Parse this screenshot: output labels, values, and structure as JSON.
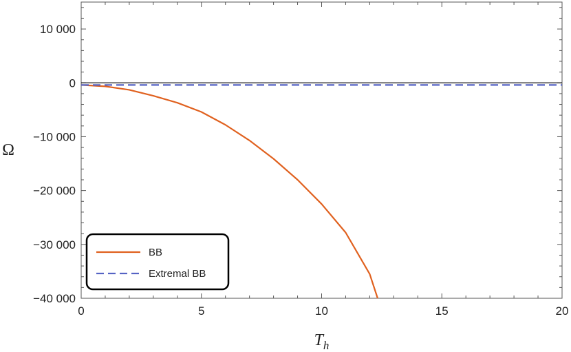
{
  "chart_data": {
    "type": "line",
    "title": "",
    "xlabel": "T",
    "xlabel_sub": "h",
    "ylabel": "Ω",
    "xlim": [
      0,
      20
    ],
    "ylim": [
      -40000,
      15000
    ],
    "x_ticks": [
      0,
      5,
      10,
      15,
      20
    ],
    "x_tick_labels": [
      "0",
      "5",
      "10",
      "15",
      "20"
    ],
    "y_ticks": [
      -40000,
      -30000,
      -20000,
      -10000,
      0,
      10000
    ],
    "y_tick_labels": [
      "−40 000",
      "−30 000",
      "−20 000",
      "−10 000",
      "0",
      "10 000"
    ],
    "grid": false,
    "legend_position": "bottom-left",
    "series": [
      {
        "name": "BB",
        "color": "#e0611f",
        "style": "solid",
        "x": [
          0,
          1,
          2,
          3,
          4,
          5,
          6,
          7,
          8,
          9,
          10,
          11,
          12,
          12.33
        ],
        "y": [
          -400,
          -650,
          -1300,
          -2400,
          -3700,
          -5400,
          -7800,
          -10700,
          -14100,
          -18000,
          -22500,
          -27800,
          -35500,
          -40000
        ]
      },
      {
        "name": "Extremal BB",
        "color": "#5563c4",
        "style": "dashed",
        "x": [
          0,
          20
        ],
        "y": [
          -400,
          -400
        ]
      }
    ]
  }
}
